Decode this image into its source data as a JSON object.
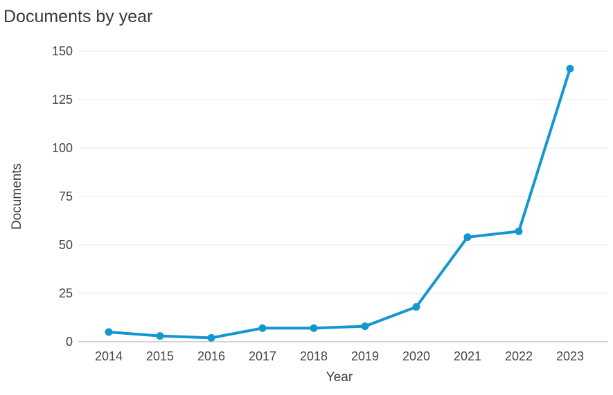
{
  "chart_data": {
    "type": "line",
    "title": "Documents by year",
    "xlabel": "Year",
    "ylabel": "Documents",
    "categories": [
      "2014",
      "2015",
      "2016",
      "2017",
      "2018",
      "2019",
      "2020",
      "2021",
      "2022",
      "2023"
    ],
    "values": [
      5,
      3,
      2,
      7,
      7,
      8,
      18,
      54,
      57,
      141
    ],
    "ylim": [
      0,
      150
    ],
    "yticks": [
      0,
      25,
      50,
      75,
      100,
      125,
      150
    ],
    "grid": "horizontal",
    "legend": "none",
    "colors": {
      "line": "#1496d0",
      "marker": "#1496d0",
      "gridline": "#e9e9e9",
      "zero_line": "#ccd3e0",
      "title_text": "#383838",
      "tick_text": "#454545",
      "background": "#ffffff"
    }
  }
}
